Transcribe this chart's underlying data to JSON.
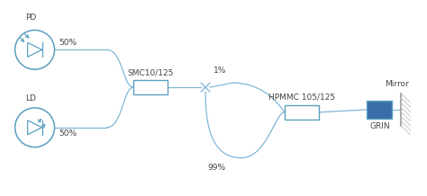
{
  "bg_color": "#ffffff",
  "line_color": "#7ab4d4",
  "text_color": "#444444",
  "component_color": "#5a9fc0",
  "grin_color": "#3a6ea8",
  "mirror_hatch_color": "#bbbbbb",
  "pd_label": "PD",
  "ld_label": "LD",
  "smc_label": "SMC10/125",
  "hpmmc_label": "HPMMC 105/125",
  "grin_label": "GRIN",
  "mirror_label": "Mirror",
  "pct_50_top": "50%",
  "pct_50_bot": "50%",
  "pct_1": "1%",
  "pct_99": "99%",
  "fig_w": 4.74,
  "fig_h": 2.18,
  "dpi": 100
}
